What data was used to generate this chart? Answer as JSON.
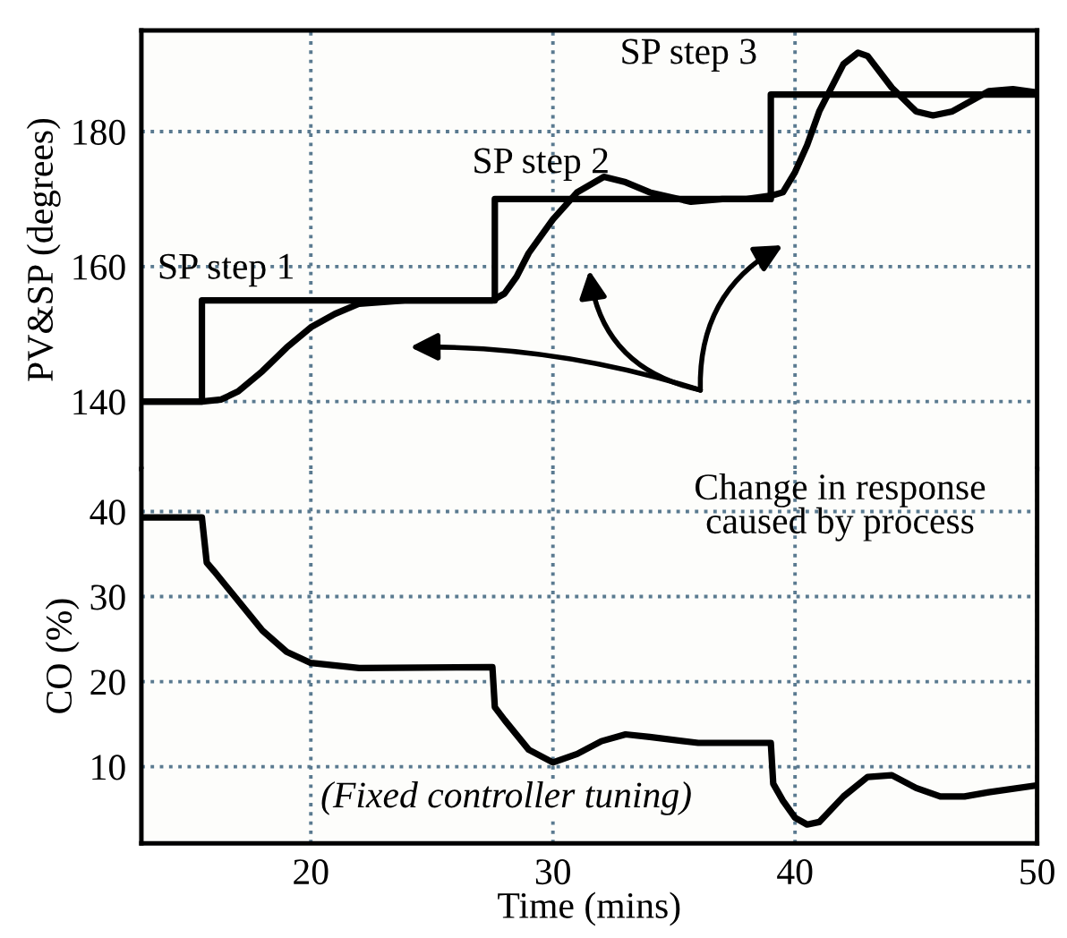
{
  "chart_data": [
    {
      "type": "line",
      "ylabel": "PV&SP (degrees)",
      "xlim": [
        13,
        50
      ],
      "xticks": [
        20,
        30,
        40
      ],
      "ylim": [
        130,
        195
      ],
      "yticks": [
        140,
        160,
        180
      ],
      "tick_labels": "y",
      "grid": true,
      "line_style": "solid",
      "series": [
        {
          "color": "#000000",
          "x": [
            13,
            15.5,
            15.5,
            27.6,
            27.6,
            39.0,
            39.0,
            50
          ],
          "values": [
            140,
            140,
            155,
            155,
            170,
            170,
            185.5,
            185.5
          ]
        },
        {
          "color": "#000000",
          "x": [
            13,
            15.5,
            16.3,
            17,
            18,
            19,
            20,
            21,
            22,
            24,
            27.5,
            28,
            28.5,
            29,
            30,
            31,
            32.1,
            33,
            34,
            35.7,
            37,
            38,
            39,
            39.5,
            40,
            40.5,
            41,
            42,
            42.6,
            43,
            44,
            45,
            45.7,
            46.5,
            47,
            48,
            49,
            50
          ],
          "values": [
            140,
            140,
            140.3,
            141.5,
            144.5,
            148,
            151,
            153,
            154.5,
            155,
            155,
            156,
            158.5,
            162,
            167,
            171,
            173.3,
            172.5,
            171,
            169.6,
            170,
            170,
            170.5,
            171,
            174,
            178,
            183,
            190,
            191.7,
            191.2,
            186.5,
            183,
            182.4,
            183,
            184,
            186,
            186.3,
            185.8
          ]
        }
      ],
      "annotations": [
        "SP step 1",
        "SP step 2",
        "SP step 3",
        "Change in response\ncaused by process"
      ]
    },
    {
      "type": "line",
      "xlabel": "Time (mins)",
      "ylabel": "CO (%)",
      "xlim": [
        13,
        50
      ],
      "xticks": [
        20,
        30,
        40,
        50
      ],
      "ylim": [
        1,
        45
      ],
      "yticks": [
        10,
        20,
        30,
        40
      ],
      "grid": true,
      "line_style": "solid",
      "series": [
        {
          "color": "#000000",
          "x": [
            13,
            15.5,
            15.7,
            16,
            17,
            18,
            19,
            20,
            22,
            27.5,
            27.6,
            28,
            29,
            30,
            31,
            32,
            33,
            34,
            36,
            39,
            39.1,
            39.5,
            40,
            40.5,
            41,
            42,
            43,
            44,
            45,
            46,
            47,
            48,
            50
          ],
          "values": [
            39.3,
            39.3,
            34,
            33,
            29.5,
            26,
            23.5,
            22.2,
            21.6,
            21.7,
            17,
            15.5,
            12,
            10.5,
            11.5,
            13,
            13.8,
            13.5,
            12.8,
            12.8,
            8,
            6,
            4,
            3.2,
            3.5,
            6.5,
            8.8,
            9,
            7.5,
            6.5,
            6.5,
            7,
            7.8
          ]
        }
      ],
      "annotations": [
        "(Fixed controller tuning)"
      ]
    }
  ]
}
